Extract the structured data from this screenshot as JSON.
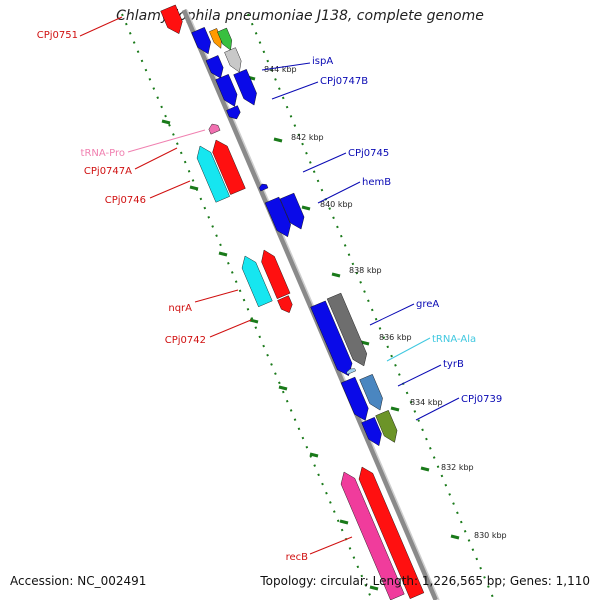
{
  "title": "Chlamydophila pneumoniae J138, complete genome",
  "footer": {
    "accession": "Accession: NC_002491",
    "summary": "Topology: circular; Length: 1,226,565 bp; Genes: 1,110"
  },
  "colors": {
    "backbone": "#8a8a8a",
    "tick": "#1a7a1a",
    "blue_gene": "#0a0ae8",
    "red_gene": "#ff1010",
    "red_label": "#d01010",
    "blue_label": "#0a0ab4",
    "cyan": "#16e6f0",
    "pink": "#f03c9c",
    "gray": "#6e6e6e",
    "steel": "#4a86c0",
    "olive": "#6c9428",
    "light_gray": "#c8c8c8",
    "orange": "#ff9a00",
    "green": "#38c040"
  },
  "scale_labels": [
    "844 kbp",
    "842 kbp",
    "840 kbp",
    "838 kbp",
    "836 kbp",
    "834 kbp",
    "832 kbp",
    "830 kbp"
  ],
  "forward_labels": [
    "ispA",
    "CPj0747B",
    "CPj0745",
    "hemB",
    "greA",
    "tRNA-Ala",
    "tyrB",
    "CPj0739"
  ],
  "reverse_labels": [
    "CPj0751",
    "tRNA-Pro",
    "CPj0747A",
    "CPj0746",
    "nqrA",
    "CPj0742",
    "recB"
  ]
}
